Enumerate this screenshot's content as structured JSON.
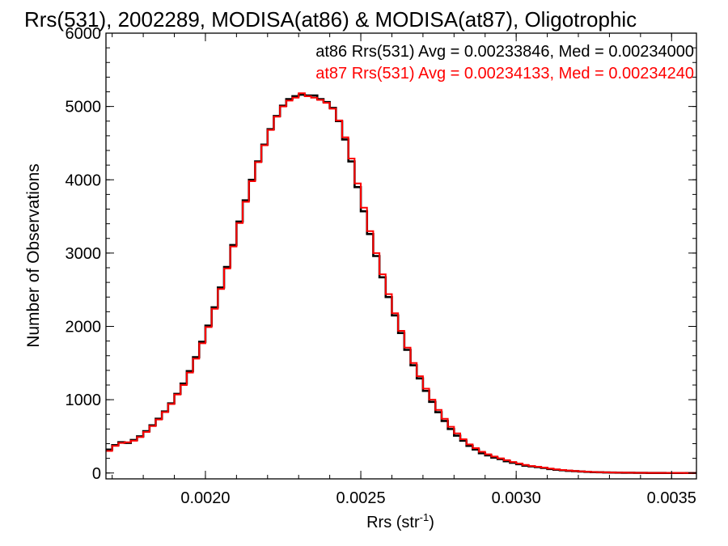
{
  "chart_data": {
    "type": "line",
    "title": "Rrs(531), 2002289, MODISA(at86) & MODISA(at87), Oligotrophic",
    "xlabel": "Rrs (str",
    "xlabel_sup": "-1",
    "xlabel_close": ")",
    "ylabel": "Number of Observations",
    "xlim": [
      0.00168,
      0.00358
    ],
    "ylim": [
      -80,
      6000
    ],
    "xticks": [
      0.002,
      0.0025,
      0.003,
      0.0035
    ],
    "xtick_labels": [
      "0.0020",
      "0.0025",
      "0.0030",
      "0.0035"
    ],
    "yticks": [
      0,
      1000,
      2000,
      3000,
      4000,
      5000,
      6000
    ],
    "ytick_labels": [
      "0",
      "1000",
      "2000",
      "3000",
      "4000",
      "5000",
      "6000"
    ],
    "grid": false,
    "legend_placement": "top-right",
    "step": true,
    "series": [
      {
        "name": "at86 Rrs(531) Avg = 0.00233846, Med = 0.00234000",
        "color": "#000000",
        "x": [
          0.00168,
          0.0017,
          0.00172,
          0.00174,
          0.00176,
          0.00178,
          0.0018,
          0.00182,
          0.00184,
          0.00186,
          0.00188,
          0.0019,
          0.00192,
          0.00194,
          0.00196,
          0.00198,
          0.002,
          0.00202,
          0.00204,
          0.00206,
          0.00208,
          0.0021,
          0.00212,
          0.00214,
          0.00216,
          0.00218,
          0.0022,
          0.00222,
          0.00224,
          0.00226,
          0.00228,
          0.0023,
          0.00232,
          0.00234,
          0.00236,
          0.00238,
          0.0024,
          0.00242,
          0.00244,
          0.00246,
          0.00248,
          0.0025,
          0.00252,
          0.00254,
          0.00256,
          0.00258,
          0.0026,
          0.00262,
          0.00264,
          0.00266,
          0.00268,
          0.0027,
          0.00272,
          0.00274,
          0.00276,
          0.00278,
          0.0028,
          0.00282,
          0.00284,
          0.00286,
          0.00288,
          0.0029,
          0.00292,
          0.00294,
          0.00296,
          0.00298,
          0.003,
          0.00302,
          0.00304,
          0.00306,
          0.00308,
          0.0031,
          0.00312,
          0.00314,
          0.00316,
          0.00318,
          0.0032,
          0.00322,
          0.00324,
          0.00326,
          0.00328,
          0.0033,
          0.00332,
          0.00334,
          0.00336,
          0.00338,
          0.0034,
          0.00342,
          0.00344,
          0.00346,
          0.00348,
          0.0035,
          0.00352,
          0.00354,
          0.00356
        ],
        "values": [
          320,
          380,
          420,
          410,
          450,
          500,
          570,
          650,
          740,
          840,
          950,
          1080,
          1220,
          1390,
          1580,
          1790,
          2010,
          2260,
          2530,
          2810,
          3110,
          3430,
          3720,
          4000,
          4250,
          4480,
          4690,
          4870,
          5010,
          5100,
          5140,
          5160,
          5150,
          5150,
          5100,
          5060,
          4980,
          4800,
          4550,
          4250,
          3900,
          3570,
          3260,
          2960,
          2670,
          2400,
          2150,
          1910,
          1680,
          1470,
          1290,
          1120,
          970,
          830,
          710,
          600,
          510,
          440,
          370,
          320,
          270,
          240,
          210,
          190,
          160,
          140,
          120,
          100,
          90,
          80,
          70,
          55,
          45,
          38,
          30,
          25,
          20,
          16,
          12,
          10,
          8,
          6,
          5,
          4,
          3,
          2,
          2,
          1,
          1,
          1,
          0,
          0,
          0,
          0,
          0
        ]
      },
      {
        "name": "at87 Rrs(531) Avg = 0.00234133, Med = 0.00234240",
        "color": "#ff0000",
        "x": [
          0.00168,
          0.0017,
          0.00172,
          0.00174,
          0.00176,
          0.00178,
          0.0018,
          0.00182,
          0.00184,
          0.00186,
          0.00188,
          0.0019,
          0.00192,
          0.00194,
          0.00196,
          0.00198,
          0.002,
          0.00202,
          0.00204,
          0.00206,
          0.00208,
          0.0021,
          0.00212,
          0.00214,
          0.00216,
          0.00218,
          0.0022,
          0.00222,
          0.00224,
          0.00226,
          0.00228,
          0.0023,
          0.00232,
          0.00234,
          0.00236,
          0.00238,
          0.0024,
          0.00242,
          0.00244,
          0.00246,
          0.00248,
          0.0025,
          0.00252,
          0.00254,
          0.00256,
          0.00258,
          0.0026,
          0.00262,
          0.00264,
          0.00266,
          0.00268,
          0.0027,
          0.00272,
          0.00274,
          0.00276,
          0.00278,
          0.0028,
          0.00282,
          0.00284,
          0.00286,
          0.00288,
          0.0029,
          0.00292,
          0.00294,
          0.00296,
          0.00298,
          0.003,
          0.00302,
          0.00304,
          0.00306,
          0.00308,
          0.0031,
          0.00312,
          0.00314,
          0.00316,
          0.00318,
          0.0032,
          0.00322,
          0.00324,
          0.00326,
          0.00328,
          0.0033,
          0.00332,
          0.00334,
          0.00336,
          0.00338,
          0.0034,
          0.00342,
          0.00344,
          0.00346,
          0.00348,
          0.0035,
          0.00352,
          0.00354,
          0.00356
        ],
        "values": [
          300,
          370,
          410,
          420,
          440,
          490,
          560,
          640,
          730,
          830,
          940,
          1070,
          1200,
          1370,
          1560,
          1770,
          1990,
          2240,
          2510,
          2790,
          3090,
          3410,
          3700,
          3980,
          4240,
          4470,
          4680,
          4860,
          5000,
          5080,
          5120,
          5180,
          5140,
          5120,
          5090,
          5050,
          4970,
          4810,
          4580,
          4290,
          3950,
          3620,
          3300,
          3000,
          2710,
          2440,
          2180,
          1940,
          1710,
          1500,
          1320,
          1150,
          1000,
          860,
          740,
          630,
          540,
          460,
          390,
          340,
          290,
          255,
          225,
          200,
          175,
          150,
          130,
          110,
          95,
          85,
          75,
          60,
          50,
          42,
          35,
          28,
          22,
          18,
          14,
          11,
          9,
          7,
          6,
          5,
          4,
          3,
          3,
          2,
          2,
          1,
          1,
          1,
          1,
          0,
          0
        ]
      }
    ]
  }
}
